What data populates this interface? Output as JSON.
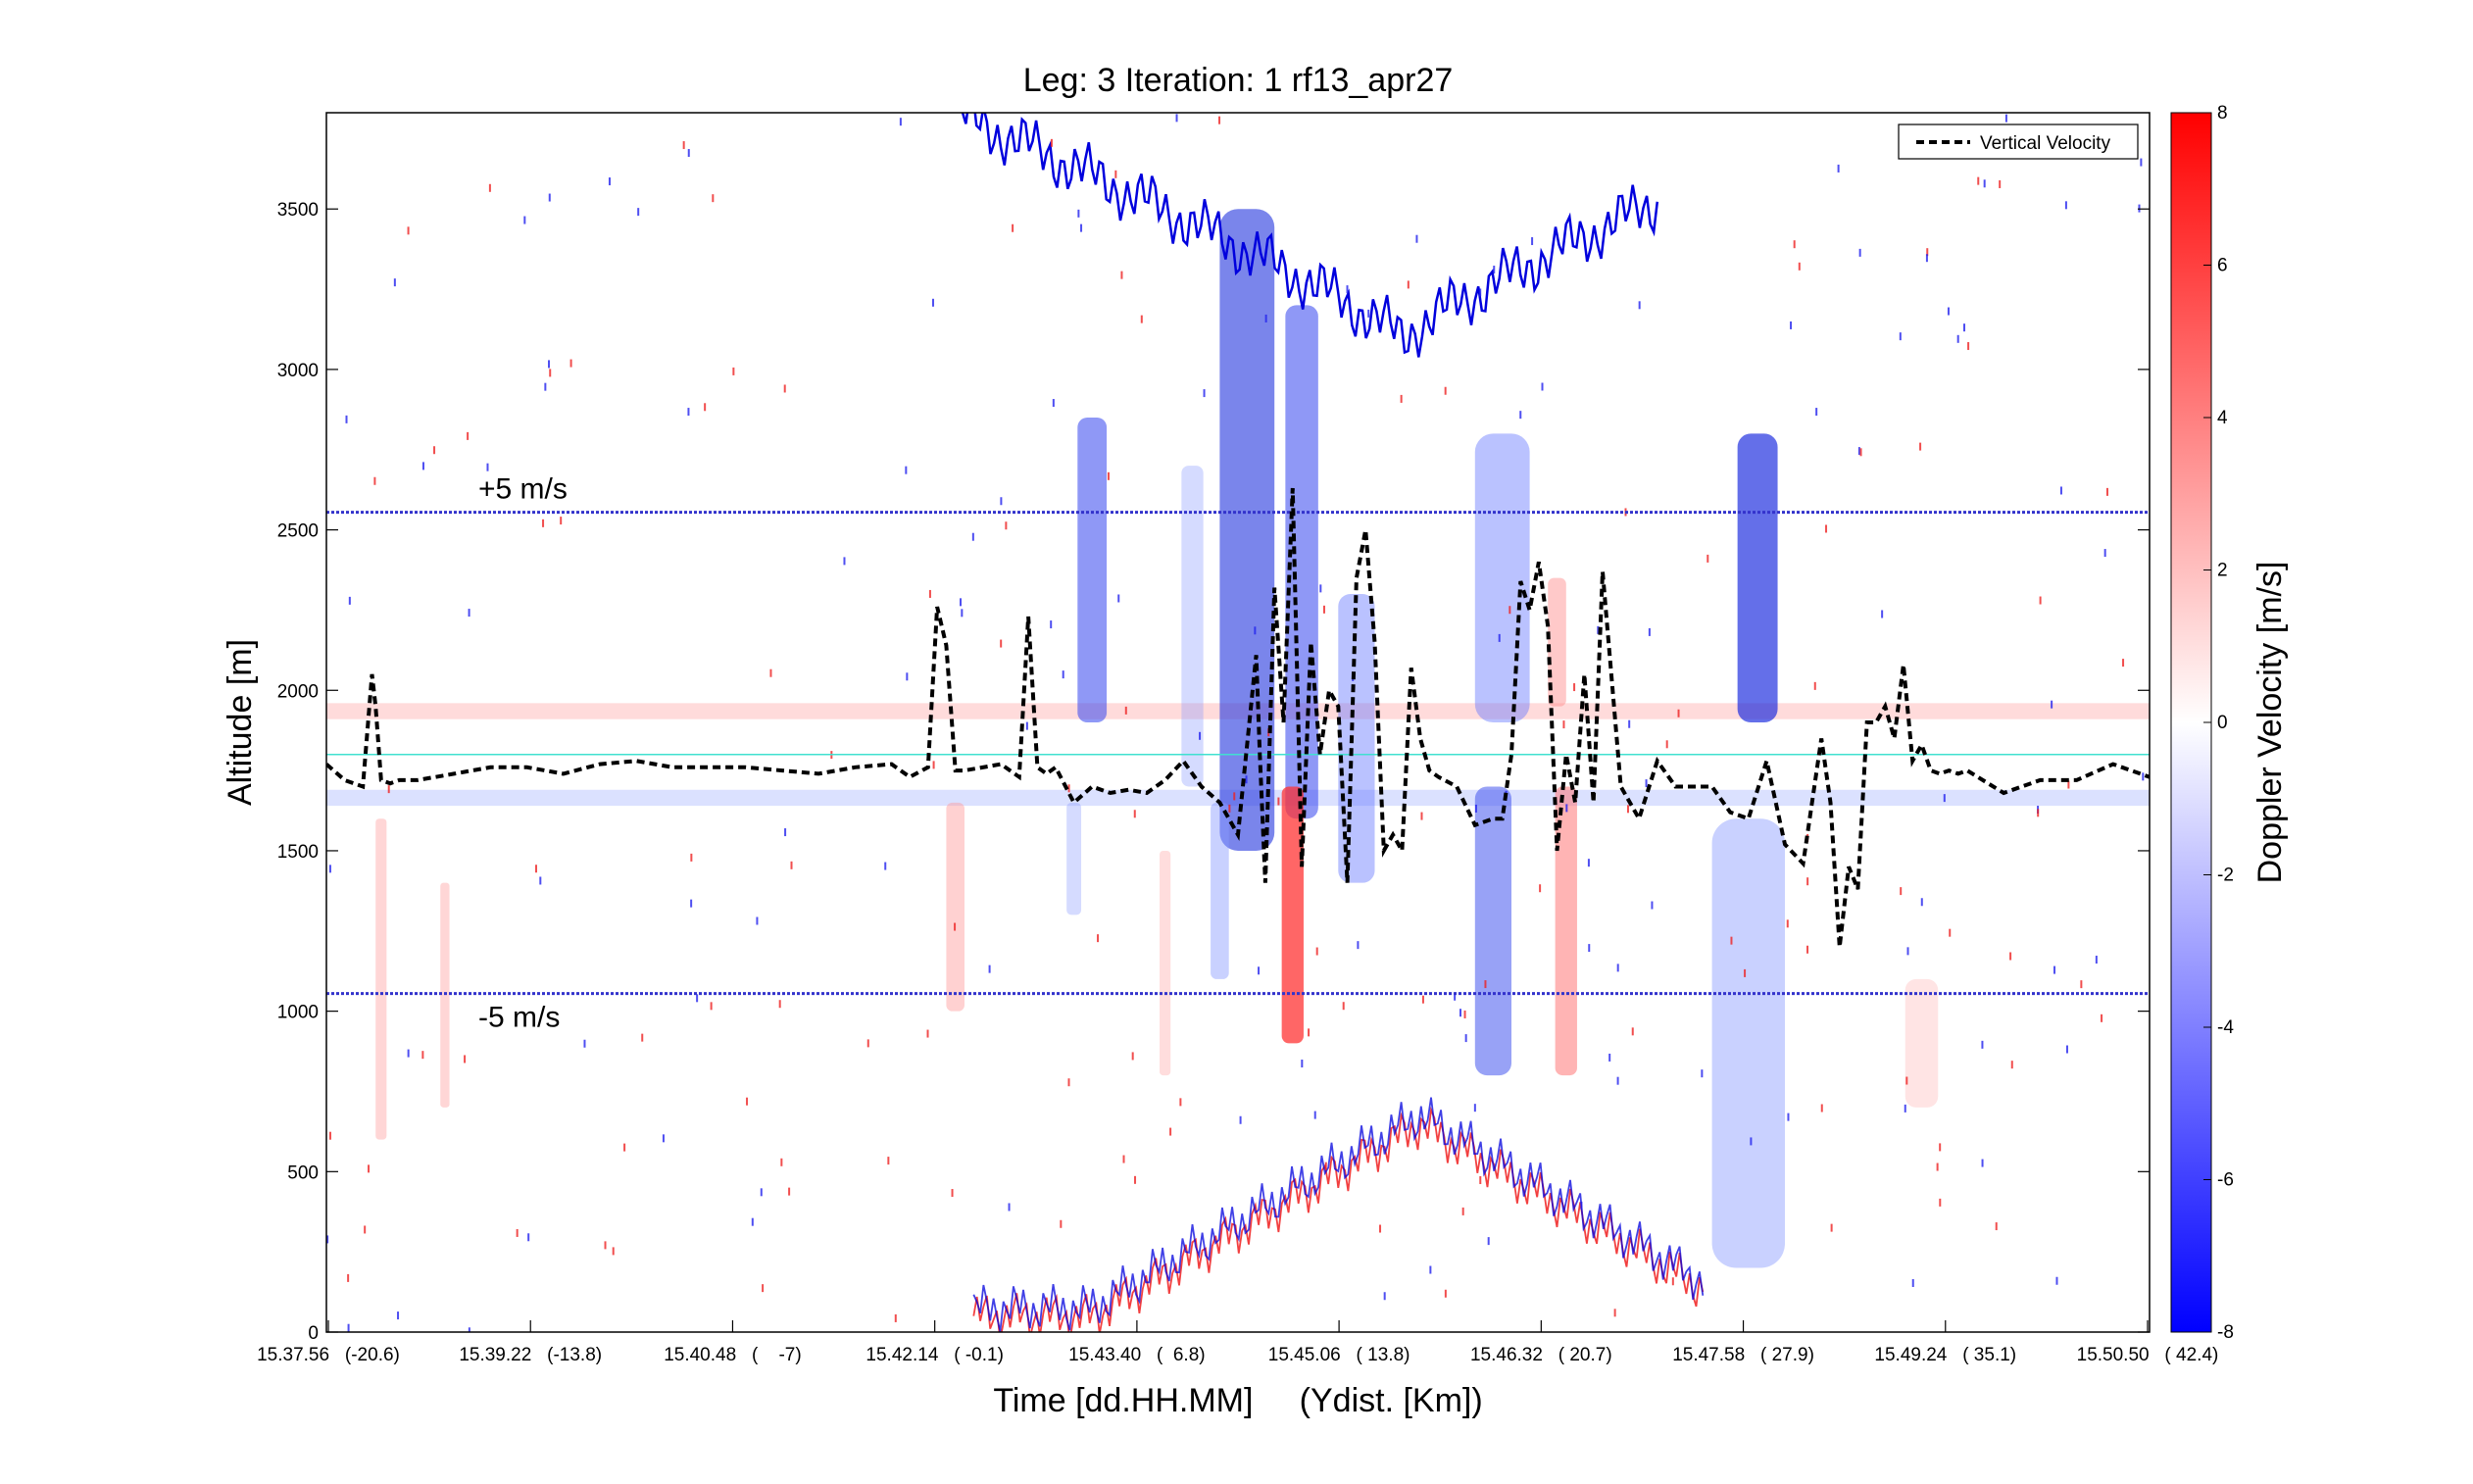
{
  "chart_data": {
    "type": "heatmap",
    "title": "Leg: 3  Iteration: 1  rf13_apr27",
    "xlabel": "Time [dd.HH.MM]     (Ydist. [Km])",
    "ylabel": "Altitude [m]",
    "colorbar_label": "Doppler Velocity [m/s]",
    "ylim": [
      0,
      3800
    ],
    "clim": [
      -8,
      8
    ],
    "colormap": {
      "low": "#0000ff",
      "mid": "#ffffff",
      "high": "#ff0000"
    },
    "y_ticks": [
      0,
      500,
      1000,
      1500,
      2000,
      2500,
      3000,
      3500
    ],
    "x_tick_labels": [
      "15.37.56   (-20.6)",
      "15.39.22   (-13.8)",
      "15.40.48   (    -7)",
      "15.42.14   ( -0.1)",
      "15.43.40   (  6.8)",
      "15.45.06   ( 13.8)",
      "15.46.32   ( 20.7)",
      "15.47.58   ( 27.9)",
      "15.49.24   ( 35.1)",
      "15.50.50   ( 42.4)"
    ],
    "colorbar_ticks": [
      8,
      6,
      4,
      2,
      0,
      -2,
      -4,
      -6,
      -8
    ],
    "legend": {
      "entry": "Vertical Velocity",
      "position": "top-right"
    },
    "reference_lines": [
      {
        "label": "+5 m/s",
        "altitude": 2555,
        "color": "#3333cc"
      },
      {
        "label": "-5 m/s",
        "altitude": 1055,
        "color": "#3333cc"
      },
      {
        "label": "",
        "altitude": 1800,
        "color": "#40e0d0"
      }
    ],
    "vertical_velocity_series": {
      "name": "Vertical Velocity",
      "x": [
        0,
        0.01,
        0.02,
        0.025,
        0.027,
        0.03,
        0.035,
        0.04,
        0.05,
        0.07,
        0.09,
        0.11,
        0.13,
        0.15,
        0.17,
        0.19,
        0.21,
        0.23,
        0.25,
        0.27,
        0.29,
        0.31,
        0.32,
        0.33,
        0.335,
        0.34,
        0.345,
        0.35,
        0.37,
        0.38,
        0.385,
        0.39,
        0.395,
        0.4,
        0.41,
        0.42,
        0.43,
        0.44,
        0.45,
        0.46,
        0.47,
        0.48,
        0.49,
        0.5,
        0.51,
        0.512,
        0.515,
        0.52,
        0.525,
        0.53,
        0.535,
        0.54,
        0.545,
        0.55,
        0.555,
        0.56,
        0.565,
        0.57,
        0.575,
        0.58,
        0.585,
        0.59,
        0.595,
        0.6,
        0.605,
        0.61,
        0.62,
        0.63,
        0.64,
        0.645,
        0.65,
        0.655,
        0.66,
        0.665,
        0.67,
        0.675,
        0.68,
        0.685,
        0.69,
        0.695,
        0.7,
        0.71,
        0.72,
        0.73,
        0.74,
        0.75,
        0.76,
        0.77,
        0.78,
        0.79,
        0.8,
        0.81,
        0.82,
        0.825,
        0.83,
        0.835,
        0.84,
        0.845,
        0.85,
        0.855,
        0.86,
        0.865,
        0.87,
        0.875,
        0.88,
        0.885,
        0.89,
        0.895,
        0.9,
        0.92,
        0.94,
        0.96,
        0.98,
        1.0
      ],
      "y": [
        1770,
        1720,
        1700,
        2050,
        1950,
        1720,
        1710,
        1720,
        1720,
        1740,
        1760,
        1760,
        1740,
        1770,
        1780,
        1760,
        1760,
        1760,
        1750,
        1740,
        1760,
        1770,
        1730,
        1760,
        2260,
        2140,
        1750,
        1750,
        1770,
        1730,
        2230,
        1760,
        1740,
        1760,
        1650,
        1700,
        1680,
        1690,
        1680,
        1720,
        1780,
        1700,
        1650,
        1550,
        2110,
        1800,
        1400,
        2320,
        1900,
        2630,
        1450,
        2150,
        1800,
        2000,
        1950,
        1400,
        2350,
        2500,
        2150,
        1500,
        1550,
        1500,
        2070,
        1850,
        1750,
        1730,
        1700,
        1580,
        1600,
        1600,
        1800,
        2340,
        2250,
        2400,
        2200,
        1500,
        1800,
        1650,
        2050,
        1650,
        2370,
        1700,
        1600,
        1780,
        1700,
        1700,
        1700,
        1620,
        1600,
        1780,
        1520,
        1460,
        1850,
        1650,
        1200,
        1450,
        1380,
        1900,
        1900,
        1950,
        1850,
        2080,
        1780,
        1830,
        1750,
        1740,
        1750,
        1740,
        1750,
        1680,
        1720,
        1720,
        1770,
        1730
      ]
    }
  }
}
